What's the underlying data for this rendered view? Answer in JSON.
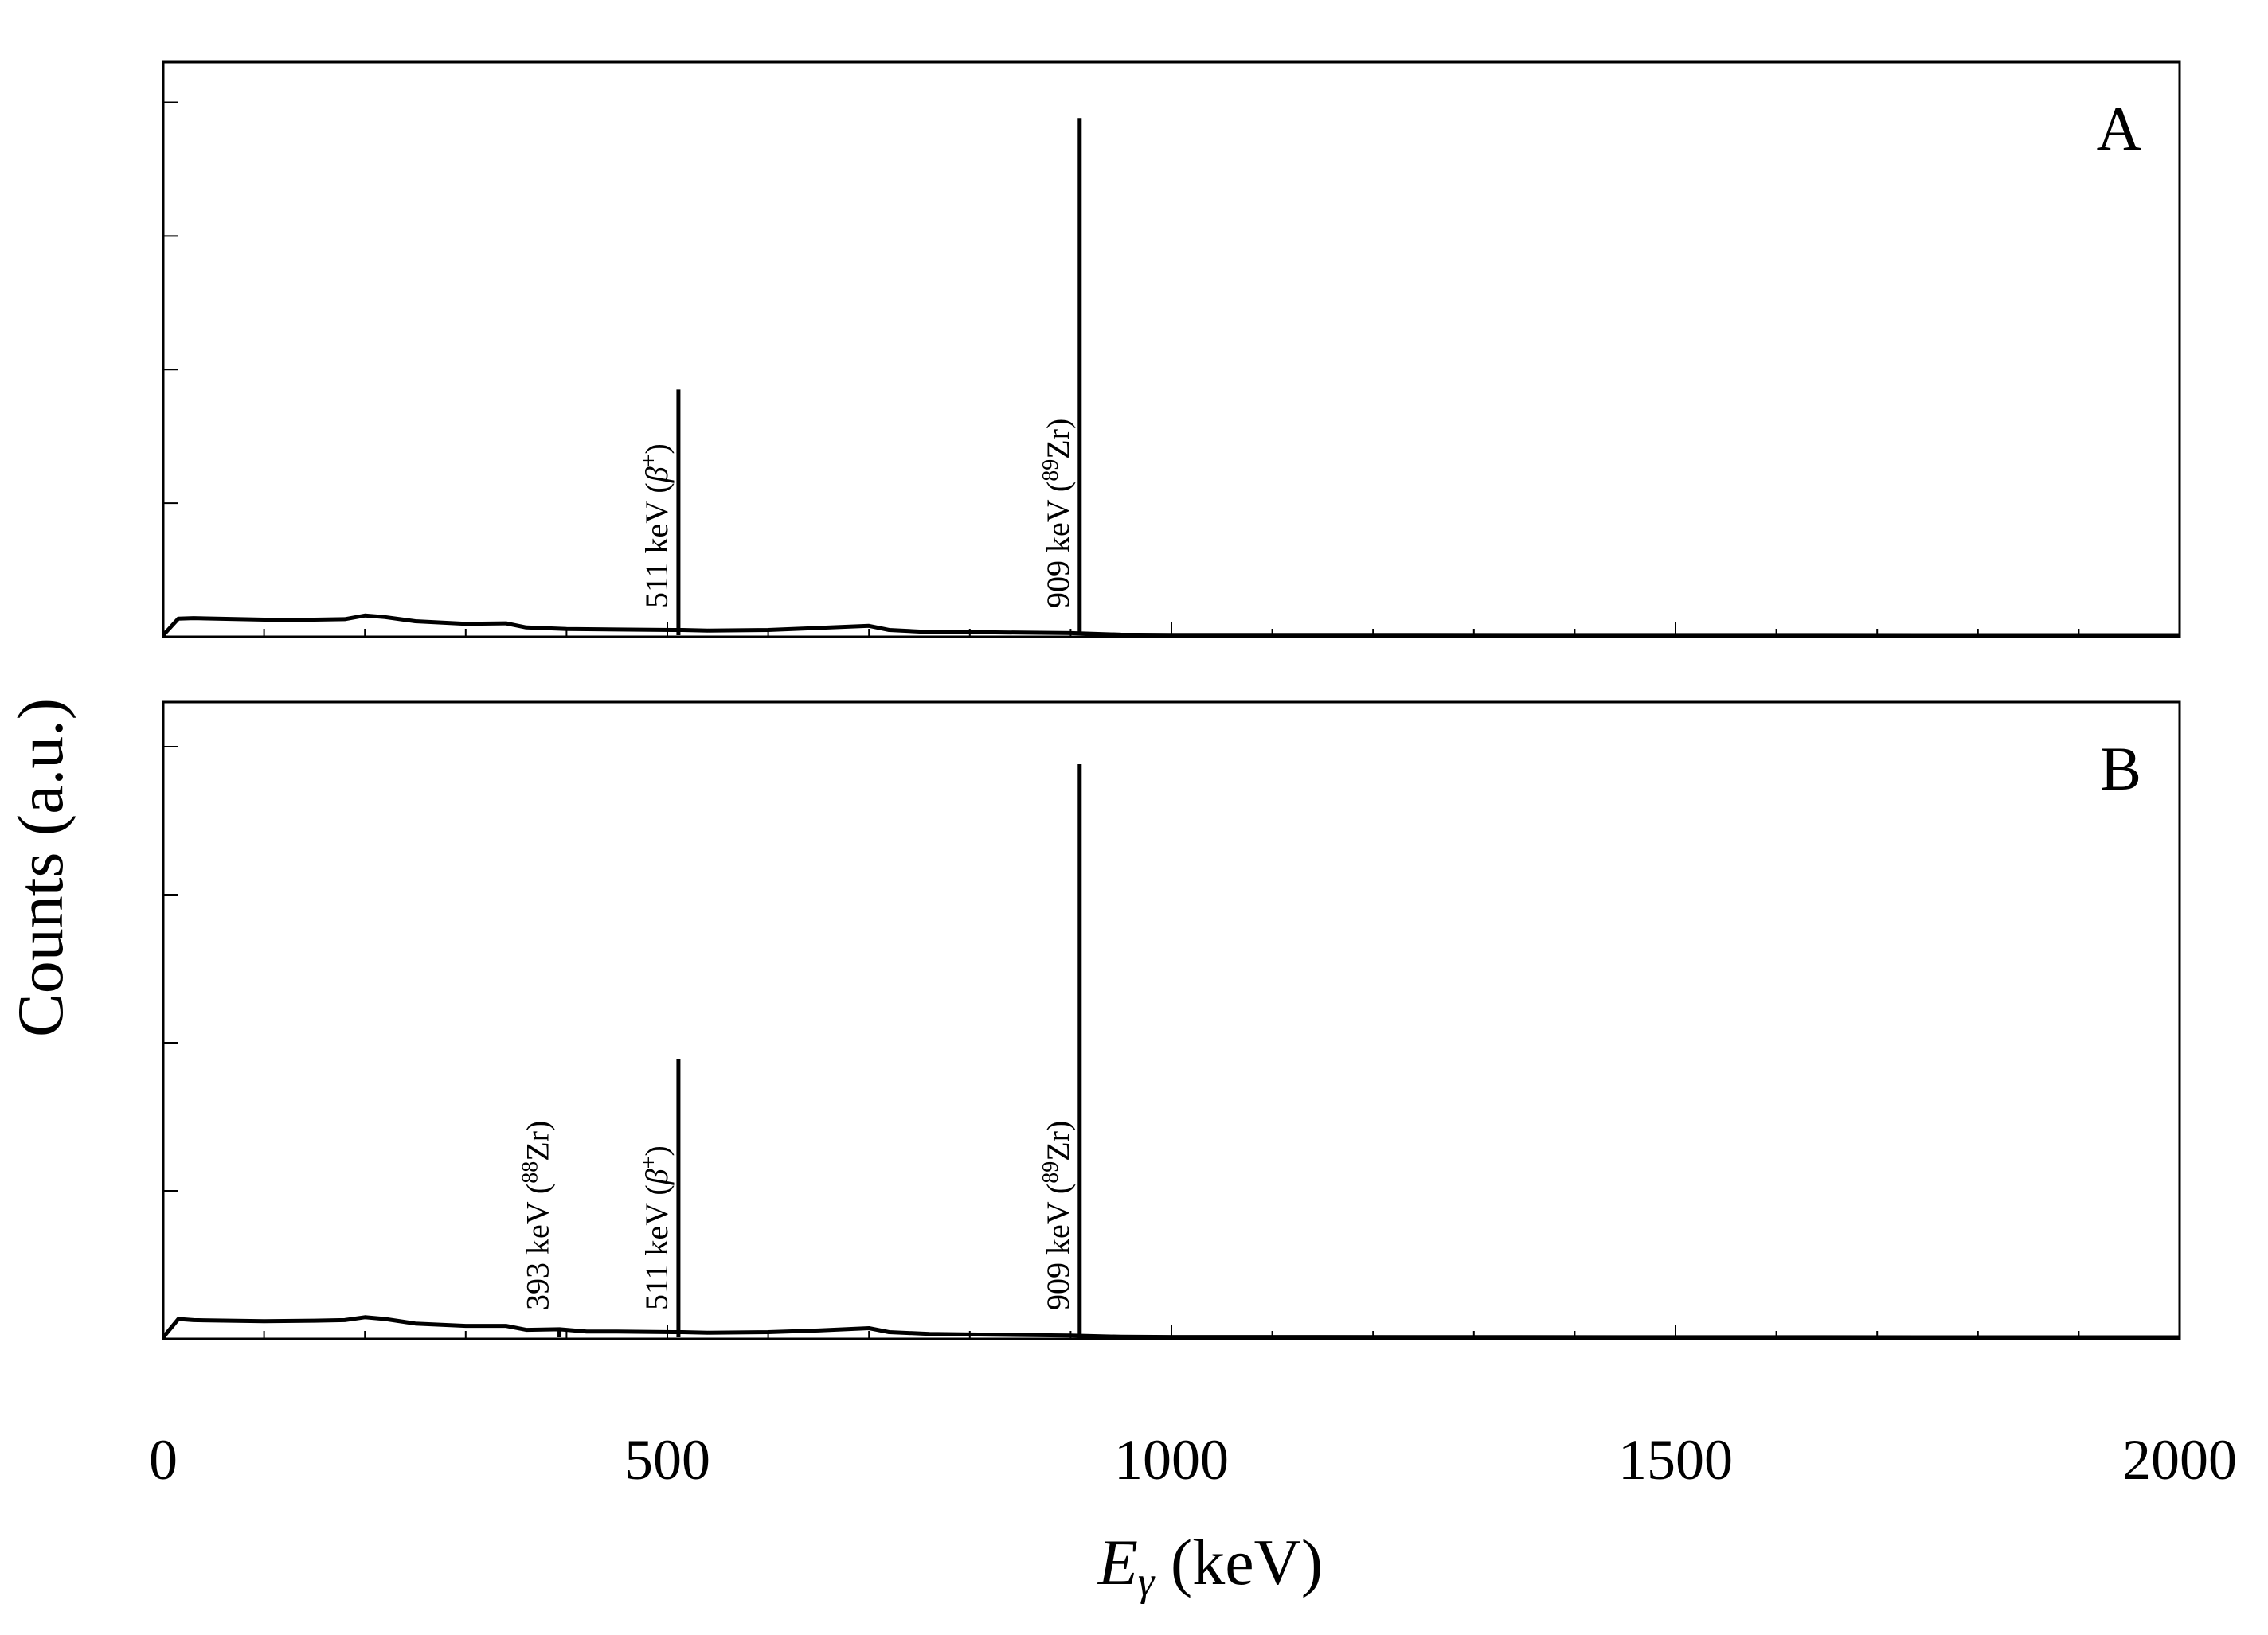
{
  "chart_data": {
    "type": "line",
    "xlabel_symbol": "E",
    "xlabel_subscript": "γ",
    "xlabel_unit": " (keV)",
    "ylabel": "Counts (a.u.)",
    "xlim": [
      0,
      2000
    ],
    "x_ticks": [
      0,
      500,
      1000,
      1500,
      2000
    ],
    "minor_tick_step": 100,
    "ylim": [
      0,
      100
    ],
    "panels": [
      {
        "label": "A",
        "background": [
          [
            0,
            0
          ],
          [
            15,
            3.2
          ],
          [
            30,
            3.3
          ],
          [
            100,
            3.0
          ],
          [
            150,
            3.0
          ],
          [
            180,
            3.1
          ],
          [
            200,
            3.8
          ],
          [
            220,
            3.5
          ],
          [
            250,
            2.7
          ],
          [
            300,
            2.2
          ],
          [
            340,
            2.3
          ],
          [
            360,
            1.5
          ],
          [
            400,
            1.2
          ],
          [
            450,
            1.1
          ],
          [
            505,
            1.0
          ],
          [
            515,
            1.0
          ],
          [
            540,
            0.9
          ],
          [
            600,
            1.0
          ],
          [
            650,
            1.4
          ],
          [
            700,
            1.8
          ],
          [
            720,
            1.0
          ],
          [
            760,
            0.6
          ],
          [
            800,
            0.6
          ],
          [
            850,
            0.5
          ],
          [
            900,
            0.4
          ],
          [
            950,
            0.1
          ],
          [
            1000,
            0.05
          ],
          [
            1500,
            0.02
          ],
          [
            2000,
            0.0
          ]
        ],
        "peaks": [
          {
            "energy": 511,
            "height": 47.5,
            "label_energy": "511 keV",
            "label_source": "β",
            "label_sup": "+"
          },
          {
            "energy": 909,
            "height": 100,
            "label_energy": "909 keV",
            "label_source": "Zr",
            "label_sup": "89"
          }
        ]
      },
      {
        "label": "B",
        "background": [
          [
            0,
            0
          ],
          [
            15,
            3.2
          ],
          [
            30,
            3.0
          ],
          [
            100,
            2.8
          ],
          [
            150,
            2.9
          ],
          [
            180,
            3.0
          ],
          [
            200,
            3.5
          ],
          [
            220,
            3.2
          ],
          [
            250,
            2.4
          ],
          [
            300,
            2.0
          ],
          [
            340,
            2.0
          ],
          [
            360,
            1.3
          ],
          [
            393,
            1.4
          ],
          [
            420,
            1.0
          ],
          [
            450,
            1.0
          ],
          [
            505,
            0.9
          ],
          [
            515,
            0.9
          ],
          [
            540,
            0.8
          ],
          [
            600,
            0.9
          ],
          [
            650,
            1.2
          ],
          [
            700,
            1.6
          ],
          [
            720,
            0.9
          ],
          [
            760,
            0.6
          ],
          [
            800,
            0.5
          ],
          [
            850,
            0.4
          ],
          [
            900,
            0.3
          ],
          [
            950,
            0.1
          ],
          [
            1000,
            0.05
          ],
          [
            1500,
            0.02
          ],
          [
            2000,
            0.0
          ]
        ],
        "peaks": [
          {
            "energy": 393,
            "height": 1.5,
            "label_energy": "393 keV",
            "label_source": "Zr",
            "label_sup": "88"
          },
          {
            "energy": 511,
            "height": 48.5,
            "label_energy": "511 keV",
            "label_source": "β",
            "label_sup": "+"
          },
          {
            "energy": 909,
            "height": 100,
            "label_energy": "909 keV",
            "label_source": "Zr",
            "label_sup": "89"
          }
        ]
      }
    ]
  }
}
